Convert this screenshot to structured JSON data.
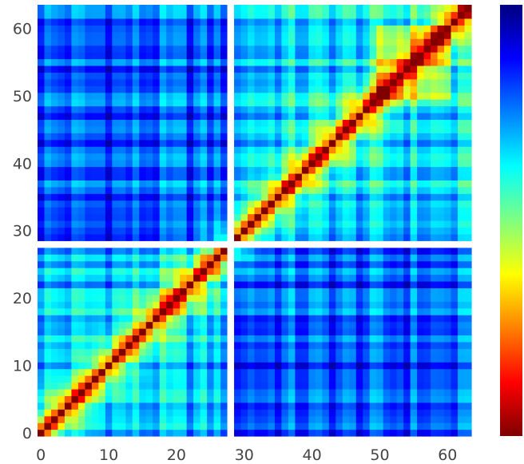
{
  "chart_data": {
    "type": "heatmap",
    "title": "",
    "xlabel": "",
    "ylabel": "",
    "matrix_size": 64,
    "xlim": [
      0,
      63
    ],
    "ylim": [
      0,
      63
    ],
    "x_ticks": [
      0,
      10,
      20,
      30,
      40,
      50,
      60
    ],
    "y_ticks": [
      0,
      10,
      20,
      30,
      40,
      50,
      60
    ],
    "x_tick_labels": [
      "0",
      "10",
      "20",
      "30",
      "40",
      "50",
      "60"
    ],
    "y_tick_labels": [
      "0",
      "10",
      "20",
      "30",
      "40",
      "50",
      "60"
    ],
    "gap_index": 28,
    "diagonal_value": 1.0,
    "block_1": {
      "range": [
        0,
        27
      ],
      "base_value": 0.3
    },
    "block_2": {
      "range": [
        29,
        63
      ],
      "base_value": 0.32
    },
    "off_block_value": 0.2,
    "colormap": "jet_reversed",
    "colorbar_ticks": [],
    "colorbar_stops": [
      "#00007f",
      "#0000ff",
      "#0080ff",
      "#00ffff",
      "#7fff7f",
      "#ffff00",
      "#ff8000",
      "#ff0000",
      "#7f0000"
    ]
  }
}
